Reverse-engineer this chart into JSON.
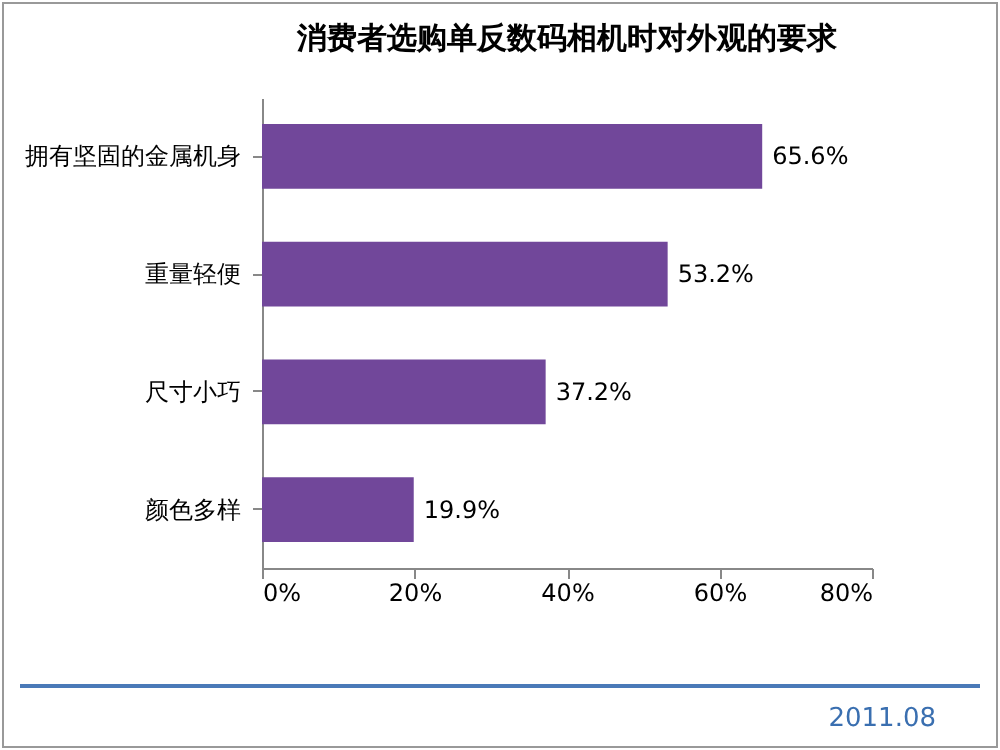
{
  "chart_data": {
    "type": "bar",
    "orientation": "horizontal",
    "title": "消费者选购单反数码相机时对外观的要求",
    "categories": [
      "拥有坚固的金属机身",
      "重量轻便",
      "尺寸小巧",
      "颜色多样"
    ],
    "values": [
      65.6,
      53.2,
      37.2,
      19.9
    ],
    "value_labels": [
      "65.6%",
      "53.2%",
      "37.2%",
      "19.9%"
    ],
    "color": "#71479a",
    "xlim": [
      0,
      80
    ],
    "xticks": [
      {
        "value": 0,
        "label": "0%"
      },
      {
        "value": 20,
        "label": "20%"
      },
      {
        "value": 40,
        "label": "40%"
      },
      {
        "value": 60,
        "label": "60%"
      },
      {
        "value": 80,
        "label": "80%"
      }
    ],
    "grid": false,
    "annotations": [
      "2011.08"
    ]
  }
}
